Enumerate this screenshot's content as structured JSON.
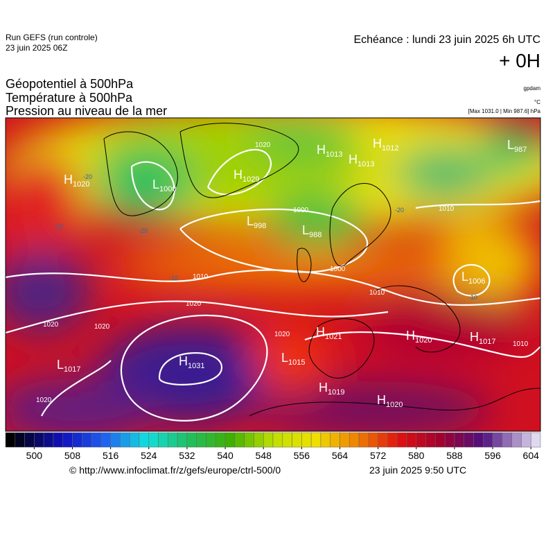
{
  "header": {
    "run": "Run GEFS (run controle)",
    "run_date": "23 juin 2025 06Z",
    "valid": "Echéance : lundi 23 juin 2025 6h UTC",
    "lead": "+ 0H",
    "titles": [
      "Géopotentiel à 500hPa",
      "Température à 500hPa",
      "Pression au niveau de la mer"
    ],
    "units": [
      "gpdam",
      "°C",
      "[Max 1031.0 | Min 987.6] hPa"
    ]
  },
  "centers": [
    {
      "type": "H",
      "value": 1020
    },
    {
      "type": "L",
      "value": 1000
    },
    {
      "type": "H",
      "value": 1029
    },
    {
      "type": "H",
      "value": 1013
    },
    {
      "type": "H",
      "value": 1013
    },
    {
      "type": "H",
      "value": 1012
    },
    {
      "type": "L",
      "value": 987
    },
    {
      "type": "L",
      "value": 998
    },
    {
      "type": "L",
      "value": 988
    },
    {
      "type": "L",
      "value": 1006
    },
    {
      "type": "H",
      "value": 1021
    },
    {
      "type": "H",
      "value": 1020
    },
    {
      "type": "H",
      "value": 1017
    },
    {
      "type": "L",
      "value": 1017
    },
    {
      "type": "H",
      "value": 1031
    },
    {
      "type": "L",
      "value": 1015
    },
    {
      "type": "H",
      "value": 1019
    },
    {
      "type": "H",
      "value": 1020
    }
  ],
  "isobar_labels": [
    1000,
    1010,
    1020,
    1020,
    1020,
    1020,
    1020,
    1010,
    1000,
    1010,
    1010,
    1020
  ],
  "temperature_labels": [
    -10,
    -20,
    -20,
    -10,
    -20,
    -10
  ],
  "colorbar": {
    "range": [
      494,
      606
    ],
    "step": 2,
    "ticks": [
      500,
      508,
      516,
      524,
      532,
      540,
      548,
      556,
      564,
      572,
      580,
      588,
      596,
      604
    ]
  },
  "footer": {
    "source": "© http://www.infoclimat.fr/z/gefs/europe/ctrl-500/0",
    "generated": "23 juin 2025  9:50 UTC"
  }
}
